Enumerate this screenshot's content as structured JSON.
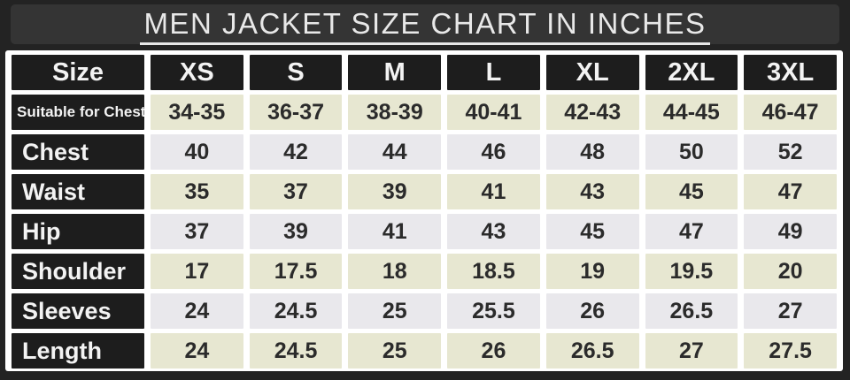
{
  "title": "MEN JACKET SIZE CHART IN INCHES",
  "colors": {
    "frame_bg": "#232323",
    "titlebar_bg": "#343434",
    "title_color": "#e8e8e8",
    "panel_bg": "#ffffff",
    "dark_cell_bg": "#1d1d1d",
    "dark_cell_text": "#f3f3f3",
    "row_cream_bg": "#e7e7d1",
    "row_gray_bg": "#e9e8ec",
    "value_text": "#2b2b2b"
  },
  "chart_data": {
    "type": "table",
    "title": "MEN JACKET SIZE CHART IN INCHES",
    "units": "inches",
    "columns": [
      "Size",
      "XS",
      "S",
      "M",
      "L",
      "XL",
      "2XL",
      "3XL"
    ],
    "rows": [
      {
        "label": "Suitable for Chest",
        "values": [
          "34-35",
          "36-37",
          "38-39",
          "40-41",
          "42-43",
          "44-45",
          "46-47"
        ]
      },
      {
        "label": "Chest",
        "values": [
          "40",
          "42",
          "44",
          "46",
          "48",
          "50",
          "52"
        ]
      },
      {
        "label": "Waist",
        "values": [
          "35",
          "37",
          "39",
          "41",
          "43",
          "45",
          "47"
        ]
      },
      {
        "label": "Hip",
        "values": [
          "37",
          "39",
          "41",
          "43",
          "45",
          "47",
          "49"
        ]
      },
      {
        "label": "Shoulder",
        "values": [
          "17",
          "17.5",
          "18",
          "18.5",
          "19",
          "19.5",
          "20"
        ]
      },
      {
        "label": "Sleeves",
        "values": [
          "24",
          "24.5",
          "25",
          "25.5",
          "26",
          "26.5",
          "27"
        ]
      },
      {
        "label": "Length",
        "values": [
          "24",
          "24.5",
          "25",
          "26",
          "26.5",
          "27",
          "27.5"
        ]
      }
    ]
  }
}
